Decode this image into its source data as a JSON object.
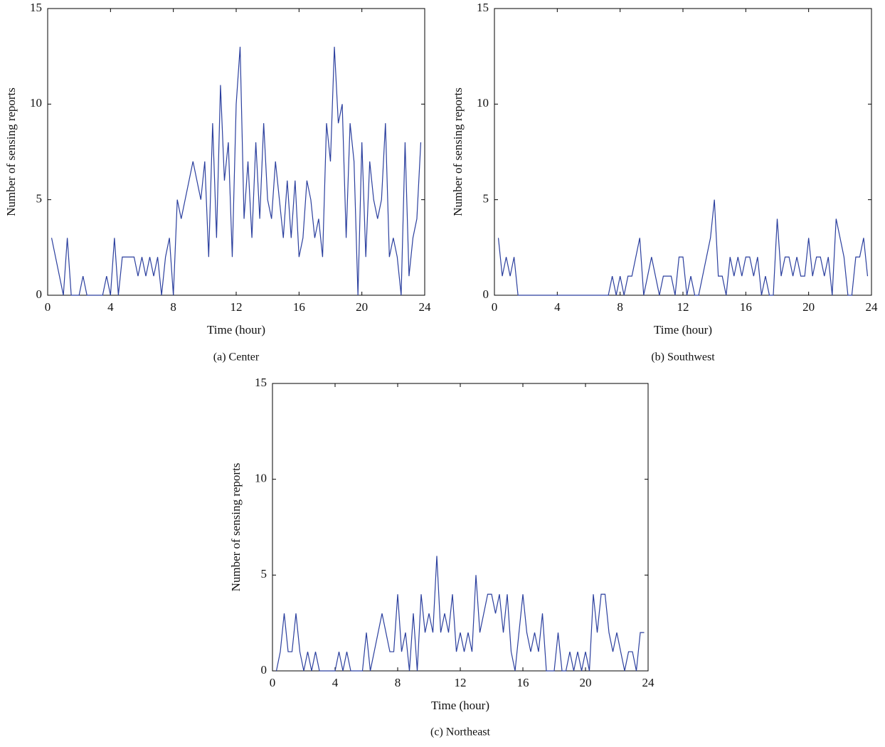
{
  "chart_data": [
    {
      "type": "line",
      "caption": "(a)  Center",
      "xlabel": "Time (hour)",
      "ylabel": "Number of sensing reports",
      "color": "#2b3f9e",
      "xlim": [
        0,
        24
      ],
      "ylim": [
        0,
        15
      ],
      "xticks": [
        0,
        4,
        8,
        12,
        16,
        20,
        24
      ],
      "yticks": [
        0,
        5,
        10,
        15
      ],
      "x": [
        0.25,
        0.5,
        0.75,
        1,
        1.25,
        1.5,
        1.75,
        2,
        2.25,
        2.5,
        2.75,
        3,
        3.25,
        3.5,
        3.75,
        4,
        4.25,
        4.5,
        4.75,
        5,
        5.25,
        5.5,
        5.75,
        6,
        6.25,
        6.5,
        6.75,
        7,
        7.25,
        7.5,
        7.75,
        8,
        8.25,
        8.5,
        8.75,
        9,
        9.25,
        9.5,
        9.75,
        10,
        10.25,
        10.5,
        10.75,
        11,
        11.25,
        11.5,
        11.75,
        12,
        12.25,
        12.5,
        12.75,
        13,
        13.25,
        13.5,
        13.75,
        14,
        14.25,
        14.5,
        14.75,
        15,
        15.25,
        15.5,
        15.75,
        16,
        16.25,
        16.5,
        16.75,
        17,
        17.25,
        17.5,
        17.75,
        18,
        18.25,
        18.5,
        18.75,
        19,
        19.25,
        19.5,
        19.75,
        20,
        20.25,
        20.5,
        20.75,
        21,
        21.25,
        21.5,
        21.75,
        22,
        22.25,
        22.5,
        22.75,
        23,
        23.25,
        23.5,
        23.75
      ],
      "values": [
        3,
        2,
        1,
        0,
        3,
        0,
        0,
        0,
        1,
        0,
        0,
        0,
        0,
        0,
        1,
        0,
        3,
        0,
        2,
        2,
        2,
        2,
        1,
        2,
        1,
        2,
        1,
        2,
        0,
        2,
        3,
        0,
        5,
        4,
        5,
        6,
        7,
        6,
        5,
        7,
        2,
        9,
        3,
        11,
        6,
        8,
        2,
        10,
        13,
        4,
        7,
        3,
        8,
        4,
        9,
        5,
        4,
        7,
        5,
        3,
        6,
        3,
        6,
        2,
        3,
        6,
        5,
        3,
        4,
        2,
        9,
        7,
        13,
        9,
        10,
        3,
        9,
        7,
        0,
        8,
        2,
        7,
        5,
        4,
        5,
        9,
        2,
        3,
        2,
        0,
        8,
        1,
        3,
        4,
        8
      ]
    },
    {
      "type": "line",
      "caption": "(b)  Southwest",
      "xlabel": "Time (hour)",
      "ylabel": "Number of sensing reports",
      "color": "#2b3f9e",
      "xlim": [
        0,
        24
      ],
      "ylim": [
        0,
        15
      ],
      "xticks": [
        0,
        4,
        8,
        12,
        16,
        20,
        24
      ],
      "yticks": [
        0,
        5,
        10,
        15
      ],
      "x": [
        0.25,
        0.5,
        0.75,
        1,
        1.25,
        1.5,
        1.75,
        2,
        2.25,
        2.5,
        2.75,
        3,
        3.25,
        3.5,
        3.75,
        4,
        4.25,
        4.5,
        4.75,
        5,
        5.25,
        5.5,
        5.75,
        6,
        6.25,
        6.5,
        6.75,
        7,
        7.25,
        7.5,
        7.75,
        8,
        8.25,
        8.5,
        8.75,
        9,
        9.25,
        9.5,
        9.75,
        10,
        10.25,
        10.5,
        10.75,
        11,
        11.25,
        11.5,
        11.75,
        12,
        12.25,
        12.5,
        12.75,
        13,
        13.25,
        13.5,
        13.75,
        14,
        14.25,
        14.5,
        14.75,
        15,
        15.25,
        15.5,
        15.75,
        16,
        16.25,
        16.5,
        16.75,
        17,
        17.25,
        17.5,
        17.75,
        18,
        18.25,
        18.5,
        18.75,
        19,
        19.25,
        19.5,
        19.75,
        20,
        20.25,
        20.5,
        20.75,
        21,
        21.25,
        21.5,
        21.75,
        22,
        22.25,
        22.5,
        22.75,
        23,
        23.25,
        23.5,
        23.75
      ],
      "values": [
        3,
        1,
        2,
        1,
        2,
        0,
        0,
        0,
        0,
        0,
        0,
        0,
        0,
        0,
        0,
        0,
        0,
        0,
        0,
        0,
        0,
        0,
        0,
        0,
        0,
        0,
        0,
        0,
        0,
        1,
        0,
        1,
        0,
        1,
        1,
        2,
        3,
        0,
        1,
        2,
        1,
        0,
        1,
        1,
        1,
        0,
        2,
        2,
        0,
        1,
        0,
        0,
        1,
        2,
        3,
        5,
        1,
        1,
        0,
        2,
        1,
        2,
        1,
        2,
        2,
        1,
        2,
        0,
        1,
        0,
        0,
        4,
        1,
        2,
        2,
        1,
        2,
        1,
        1,
        3,
        1,
        2,
        2,
        1,
        2,
        0,
        4,
        3,
        2,
        0,
        0,
        2,
        2,
        3,
        1
      ]
    },
    {
      "type": "line",
      "caption": "(c)  Northeast",
      "xlabel": "Time (hour)",
      "ylabel": "Number of sensing reports",
      "color": "#2b3f9e",
      "xlim": [
        0,
        24
      ],
      "ylim": [
        0,
        15
      ],
      "xticks": [
        0,
        4,
        8,
        12,
        16,
        20,
        24
      ],
      "yticks": [
        0,
        5,
        10,
        15
      ],
      "x": [
        0.25,
        0.5,
        0.75,
        1,
        1.25,
        1.5,
        1.75,
        2,
        2.25,
        2.5,
        2.75,
        3,
        3.25,
        3.5,
        3.75,
        4,
        4.25,
        4.5,
        4.75,
        5,
        5.25,
        5.5,
        5.75,
        6,
        6.25,
        6.5,
        6.75,
        7,
        7.25,
        7.5,
        7.75,
        8,
        8.25,
        8.5,
        8.75,
        9,
        9.25,
        9.5,
        9.75,
        10,
        10.25,
        10.5,
        10.75,
        11,
        11.25,
        11.5,
        11.75,
        12,
        12.25,
        12.5,
        12.75,
        13,
        13.25,
        13.5,
        13.75,
        14,
        14.25,
        14.5,
        14.75,
        15,
        15.25,
        15.5,
        15.75,
        16,
        16.25,
        16.5,
        16.75,
        17,
        17.25,
        17.5,
        17.75,
        18,
        18.25,
        18.5,
        18.75,
        19,
        19.25,
        19.5,
        19.75,
        20,
        20.25,
        20.5,
        20.75,
        21,
        21.25,
        21.5,
        21.75,
        22,
        22.25,
        22.5,
        22.75,
        23,
        23.25,
        23.5,
        23.75
      ],
      "values": [
        0,
        1,
        3,
        1,
        1,
        3,
        1,
        0,
        1,
        0,
        1,
        0,
        0,
        0,
        0,
        0,
        1,
        0,
        1,
        0,
        0,
        0,
        0,
        2,
        0,
        1,
        2,
        3,
        2,
        1,
        1,
        4,
        1,
        2,
        0,
        3,
        0,
        4,
        2,
        3,
        2,
        6,
        2,
        3,
        2,
        4,
        1,
        2,
        1,
        2,
        1,
        5,
        2,
        3,
        4,
        4,
        3,
        4,
        2,
        4,
        1,
        0,
        2,
        4,
        2,
        1,
        2,
        1,
        3,
        0,
        0,
        0,
        2,
        0,
        0,
        1,
        0,
        1,
        0,
        1,
        0,
        4,
        2,
        4,
        4,
        2,
        1,
        2,
        1,
        0,
        1,
        1,
        0,
        2,
        2
      ]
    }
  ]
}
